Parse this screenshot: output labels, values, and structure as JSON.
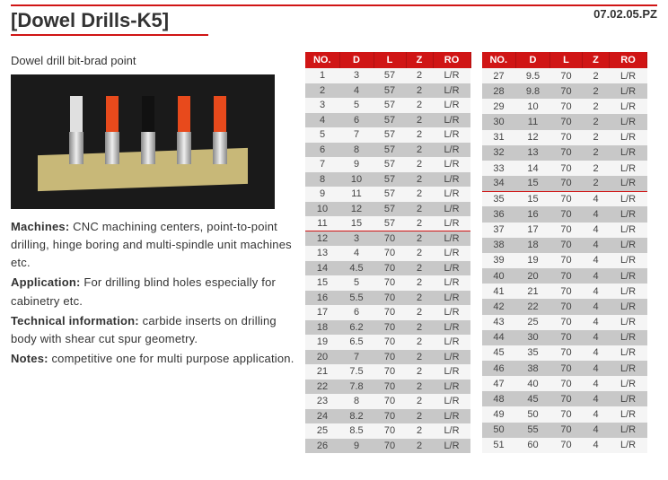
{
  "ref_code": "07.02.05.PZ",
  "title": "[Dowel Drills-K5]",
  "subtitle": "Dowel drill bit-brad point",
  "desc": {
    "machines_label": "Machines:",
    "machines": " CNC machining centers,  point-to-point drilling, hinge boring and multi-spindle unit machines etc.",
    "application_label": "Application:",
    "application": " For drilling blind holes especially for cabinetry etc.",
    "technical_label": "Technical information:",
    "technical": " carbide inserts on drilling body with shear cut spur geometry.",
    "notes_label": "Notes:",
    "notes": " competitive one for multi purpose application."
  },
  "table": {
    "headers": [
      "NO.",
      "D",
      "L",
      "Z",
      "RO"
    ],
    "colors": {
      "header_bg": "#d01515",
      "row_alt": "#c8c8c8",
      "row": "#f5f5f5",
      "divider": "#d01515"
    },
    "left_rows": [
      [
        1,
        3,
        57,
        2,
        "L/R"
      ],
      [
        2,
        4,
        57,
        2,
        "L/R"
      ],
      [
        3,
        5,
        57,
        2,
        "L/R"
      ],
      [
        4,
        6,
        57,
        2,
        "L/R"
      ],
      [
        5,
        7,
        57,
        2,
        "L/R"
      ],
      [
        6,
        8,
        57,
        2,
        "L/R"
      ],
      [
        7,
        9,
        57,
        2,
        "L/R"
      ],
      [
        8,
        10,
        57,
        2,
        "L/R"
      ],
      [
        9,
        11,
        57,
        2,
        "L/R"
      ],
      [
        10,
        12,
        57,
        2,
        "L/R"
      ],
      [
        11,
        15,
        57,
        2,
        "L/R"
      ],
      [
        12,
        3,
        70,
        2,
        "L/R"
      ],
      [
        13,
        4,
        70,
        2,
        "L/R"
      ],
      [
        14,
        4.5,
        70,
        2,
        "L/R"
      ],
      [
        15,
        5,
        70,
        2,
        "L/R"
      ],
      [
        16,
        5.5,
        70,
        2,
        "L/R"
      ],
      [
        17,
        6,
        70,
        2,
        "L/R"
      ],
      [
        18,
        6.2,
        70,
        2,
        "L/R"
      ],
      [
        19,
        6.5,
        70,
        2,
        "L/R"
      ],
      [
        20,
        7,
        70,
        2,
        "L/R"
      ],
      [
        21,
        7.5,
        70,
        2,
        "L/R"
      ],
      [
        22,
        7.8,
        70,
        2,
        "L/R"
      ],
      [
        23,
        8,
        70,
        2,
        "L/R"
      ],
      [
        24,
        8.2,
        70,
        2,
        "L/R"
      ],
      [
        25,
        8.5,
        70,
        2,
        "L/R"
      ],
      [
        26,
        9,
        70,
        2,
        "L/R"
      ]
    ],
    "left_divider_after": 11,
    "right_rows": [
      [
        27,
        9.5,
        70,
        2,
        "L/R"
      ],
      [
        28,
        9.8,
        70,
        2,
        "L/R"
      ],
      [
        29,
        10,
        70,
        2,
        "L/R"
      ],
      [
        30,
        11,
        70,
        2,
        "L/R"
      ],
      [
        31,
        12,
        70,
        2,
        "L/R"
      ],
      [
        32,
        13,
        70,
        2,
        "L/R"
      ],
      [
        33,
        14,
        70,
        2,
        "L/R"
      ],
      [
        34,
        15,
        70,
        2,
        "L/R"
      ],
      [
        35,
        15,
        70,
        4,
        "L/R"
      ],
      [
        36,
        16,
        70,
        4,
        "L/R"
      ],
      [
        37,
        17,
        70,
        4,
        "L/R"
      ],
      [
        38,
        18,
        70,
        4,
        "L/R"
      ],
      [
        39,
        19,
        70,
        4,
        "L/R"
      ],
      [
        40,
        20,
        70,
        4,
        "L/R"
      ],
      [
        41,
        21,
        70,
        4,
        "L/R"
      ],
      [
        42,
        22,
        70,
        4,
        "L/R"
      ],
      [
        43,
        25,
        70,
        4,
        "L/R"
      ],
      [
        44,
        30,
        70,
        4,
        "L/R"
      ],
      [
        45,
        35,
        70,
        4,
        "L/R"
      ],
      [
        46,
        38,
        70,
        4,
        "L/R"
      ],
      [
        47,
        40,
        70,
        4,
        "L/R"
      ],
      [
        48,
        45,
        70,
        4,
        "L/R"
      ],
      [
        49,
        50,
        70,
        4,
        "L/R"
      ],
      [
        50,
        55,
        70,
        4,
        "L/R"
      ],
      [
        51,
        60,
        70,
        4,
        "L/R"
      ]
    ],
    "right_divider_after": 8
  }
}
